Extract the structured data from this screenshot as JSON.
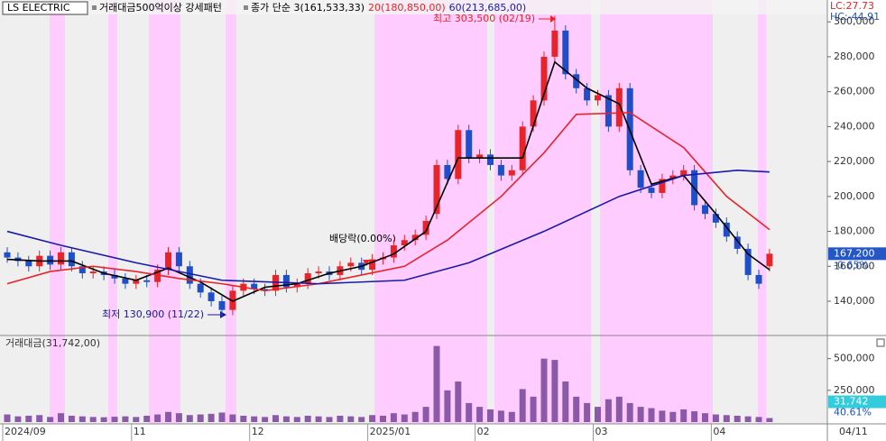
{
  "chart_data": {
    "type": "candlestick",
    "title": "LS ELECTRIC",
    "pattern_label": "거래대금500억이상 강세패턴",
    "categories": [
      "2024/09",
      null,
      null,
      null,
      null,
      null,
      null,
      null,
      null,
      null,
      null,
      null,
      "11",
      null,
      null,
      null,
      null,
      null,
      null,
      null,
      null,
      null,
      null,
      "12",
      null,
      null,
      null,
      null,
      null,
      null,
      null,
      null,
      null,
      null,
      "2025/01",
      null,
      null,
      null,
      null,
      null,
      null,
      null,
      null,
      null,
      "02",
      null,
      null,
      null,
      null,
      null,
      null,
      null,
      null,
      null,
      null,
      "03",
      null,
      null,
      null,
      null,
      null,
      null,
      null,
      null,
      null,
      null,
      "04",
      null,
      null,
      null,
      null,
      null
    ],
    "x_end_label": "04/11",
    "open": [
      168000,
      165000,
      163000,
      160000,
      166000,
      161000,
      168000,
      160000,
      156000,
      157000,
      155000,
      153000,
      150000,
      152000,
      151000,
      158000,
      168000,
      160000,
      150000,
      145000,
      140000,
      135000,
      146000,
      150000,
      147000,
      146000,
      155000,
      148000,
      150000,
      156000,
      157000,
      155000,
      160000,
      162000,
      158000,
      164000,
      165000,
      172000,
      175000,
      178000,
      190000,
      218000,
      210000,
      238000,
      222000,
      224000,
      218000,
      212000,
      215000,
      240000,
      255000,
      280000,
      295000,
      270000,
      262000,
      255000,
      258000,
      240000,
      262000,
      215000,
      205000,
      202000,
      210000,
      212000,
      215000,
      195000,
      190000,
      185000,
      177000,
      170000,
      155000,
      160000
    ],
    "high": [
      171000,
      168000,
      166000,
      169000,
      169000,
      171000,
      171000,
      163000,
      160000,
      160000,
      158000,
      156000,
      155000,
      155000,
      161000,
      171000,
      171000,
      163000,
      153000,
      148000,
      143000,
      149000,
      153000,
      153000,
      150000,
      158000,
      158000,
      153000,
      159000,
      160000,
      160000,
      163000,
      165000,
      165000,
      167000,
      168000,
      175000,
      178000,
      181000,
      189000,
      221000,
      221000,
      241000,
      241000,
      227000,
      227000,
      221000,
      218000,
      243000,
      258000,
      283000,
      303500,
      298000,
      273000,
      265000,
      261000,
      261000,
      265000,
      265000,
      218000,
      208000,
      213000,
      215000,
      218000,
      218000,
      198000,
      193000,
      188000,
      180000,
      173000,
      158000,
      170000
    ],
    "low": [
      162000,
      160000,
      157000,
      157000,
      158000,
      158000,
      157000,
      153000,
      153000,
      152000,
      150000,
      147000,
      147000,
      148000,
      148000,
      155000,
      157000,
      147000,
      142000,
      137000,
      130900,
      132000,
      143000,
      144000,
      143000,
      143000,
      145000,
      145000,
      147000,
      153000,
      152000,
      152000,
      157000,
      155000,
      155000,
      161000,
      162000,
      169000,
      172000,
      175000,
      187000,
      207000,
      207000,
      219000,
      219000,
      215000,
      209000,
      209000,
      212000,
      237000,
      252000,
      277000,
      267000,
      259000,
      252000,
      252000,
      237000,
      237000,
      212000,
      202000,
      199000,
      199000,
      207000,
      209000,
      192000,
      187000,
      182000,
      174000,
      167000,
      152000,
      147000,
      157000
    ],
    "close": [
      165000,
      163000,
      160000,
      166000,
      161000,
      168000,
      160000,
      156000,
      157000,
      155000,
      153000,
      150000,
      152000,
      151000,
      158000,
      168000,
      160000,
      150000,
      145000,
      140000,
      135000,
      146000,
      150000,
      147000,
      146000,
      155000,
      148000,
      150000,
      156000,
      157000,
      155000,
      160000,
      162000,
      158000,
      164000,
      165000,
      172000,
      175000,
      178000,
      186000,
      218000,
      210000,
      238000,
      222000,
      224000,
      218000,
      212000,
      215000,
      240000,
      255000,
      280000,
      295000,
      270000,
      262000,
      255000,
      258000,
      240000,
      262000,
      215000,
      205000,
      202000,
      210000,
      212000,
      215000,
      195000,
      190000,
      185000,
      177000,
      170000,
      155000,
      150000,
      167200
    ],
    "up_color": "#e8232a",
    "down_color": "#1f4fc8",
    "series": [
      {
        "name": "종가 단순 3(161,533,33)",
        "color": "#000000",
        "x": [
          0,
          3,
          6,
          9,
          12,
          15,
          18,
          21,
          24,
          27,
          30,
          33,
          36,
          39,
          42,
          45,
          48,
          51,
          54,
          57,
          60,
          63,
          66,
          69,
          71
        ],
        "values": [
          164000,
          163000,
          163000,
          156000,
          152000,
          159000,
          151000,
          140000,
          148000,
          150000,
          156000,
          160000,
          167000,
          180000,
          222000,
          222000,
          222000,
          277000,
          262000,
          253000,
          207000,
          212000,
          190000,
          167000,
          158000
        ]
      },
      {
        "name": "20(180,850,00)",
        "color": "#e8232a",
        "x": [
          0,
          4,
          8,
          12,
          16,
          20,
          24,
          29,
          33,
          37,
          41,
          46,
          50,
          53,
          58,
          63,
          67,
          71
        ],
        "values": [
          150000,
          157000,
          160000,
          157000,
          153000,
          150000,
          146000,
          150000,
          155000,
          160000,
          175000,
          200000,
          225000,
          247000,
          248000,
          228000,
          200000,
          181000
        ]
      },
      {
        "name": "60(213,685,00)",
        "color": "#1a1aa8",
        "x": [
          0,
          5,
          12,
          20,
          29,
          37,
          43,
          50,
          57,
          63,
          68,
          71
        ],
        "values": [
          180000,
          172000,
          162000,
          152000,
          150000,
          152000,
          162000,
          180000,
          200000,
          212000,
          215000,
          214000
        ]
      }
    ],
    "ylim": [
      121400,
      312500
    ],
    "yticks": [
      {
        "value": 140000,
        "label": "140,000"
      },
      {
        "value": 160000,
        "label": "160,000"
      },
      {
        "value": 180000,
        "label": "180,000"
      },
      {
        "value": 200000,
        "label": "200,000"
      },
      {
        "value": 220000,
        "label": "220,000"
      },
      {
        "value": 240000,
        "label": "240,000"
      },
      {
        "value": 260000,
        "label": "260,000"
      },
      {
        "value": 280000,
        "label": "280,000"
      },
      {
        "value": 300000,
        "label": "300,000"
      }
    ],
    "last_price": {
      "value": 167200,
      "label": "167,200"
    },
    "change_label": "-0.65%",
    "lc_label": "LC:27.73",
    "hc_label": "HC:-44.91",
    "annotations": {
      "high": "최고 303,500 (02/19)",
      "low": "최저 130,900 (11/22)",
      "dividend": "배당락(0.00%)"
    },
    "volume_title": "거래대금(31,742,00)",
    "volume_color": "#8a5aa8",
    "volume": [
      60000,
      45000,
      50000,
      55000,
      40000,
      70000,
      50000,
      45000,
      40000,
      38000,
      42000,
      45000,
      40000,
      50000,
      60000,
      80000,
      70000,
      55000,
      60000,
      65000,
      75000,
      60000,
      50000,
      45000,
      40000,
      55000,
      45000,
      40000,
      50000,
      45000,
      40000,
      50000,
      45000,
      40000,
      55000,
      50000,
      70000,
      60000,
      80000,
      120000,
      600000,
      250000,
      320000,
      150000,
      120000,
      100000,
      90000,
      80000,
      260000,
      200000,
      500000,
      490000,
      320000,
      200000,
      150000,
      120000,
      180000,
      200000,
      150000,
      120000,
      110000,
      90000,
      80000,
      100000,
      85000,
      70000,
      60000,
      55000,
      50000,
      45000,
      40000,
      31742
    ],
    "vlim": [
      0,
      640000
    ],
    "vticks": [
      {
        "value": 250000,
        "label": "250,000"
      },
      {
        "value": 500000,
        "label": "500,000"
      }
    ],
    "last_volume": {
      "value": 31742,
      "label": "31,742"
    },
    "volume_ratio_label": "40.61%"
  }
}
